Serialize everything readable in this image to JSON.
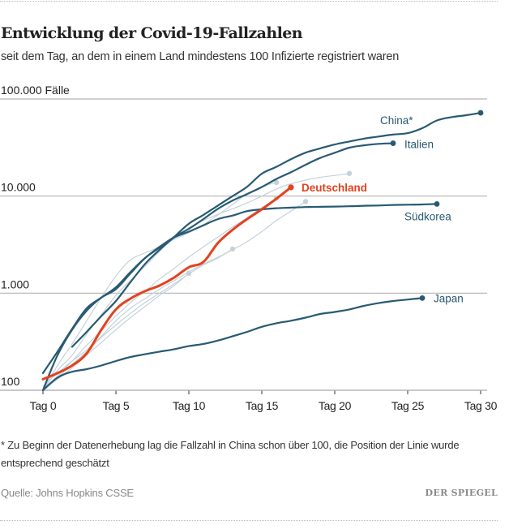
{
  "header": {
    "title": "Entwicklung der Covid-19-Fallzahlen",
    "subtitle": "seit dem Tag, an dem in einem Land mindestens 100 Infizierte registriert waren"
  },
  "footer": {
    "footnote": "* Zu Beginn der Datenerhebung lag die Fallzahl in China schon über 100, die Position der Linie wurde entsprechend geschätzt",
    "source": "Quelle: Johns Hopkins CSSE",
    "logo": "DER SPIEGEL"
  },
  "colors": {
    "highlight": "#e4421d",
    "labeled": "#285a73",
    "background_series": "#c5d2da",
    "grid": "#b3b3b3"
  },
  "chart_data": {
    "type": "line",
    "title": "Entwicklung der Covid-19-Fallzahlen",
    "subtitle": "seit dem Tag, an dem in einem Land mindestens 100 Infizierte registriert waren",
    "xlabel": "",
    "ylabel": "Fälle",
    "yscale": "log",
    "xlim": [
      0,
      30
    ],
    "ylim": [
      100,
      100000
    ],
    "grid": true,
    "x_ticks": [
      {
        "value": 0,
        "label": "Tag 0"
      },
      {
        "value": 5,
        "label": "Tag 5"
      },
      {
        "value": 10,
        "label": "Tag 10"
      },
      {
        "value": 15,
        "label": "Tag 15"
      },
      {
        "value": 20,
        "label": "Tag 20"
      },
      {
        "value": 25,
        "label": "Tag 25"
      },
      {
        "value": 30,
        "label": "Tag 30"
      }
    ],
    "y_ticks": [
      {
        "value": 100,
        "label": "100"
      },
      {
        "value": 1000,
        "label": "1.000"
      },
      {
        "value": 10000,
        "label": "10.000"
      },
      {
        "value": 100000,
        "label": "100.000 Fälle"
      }
    ],
    "series": [
      {
        "name": "",
        "role": "background",
        "start_day": 0,
        "values": [
          100,
          160,
          230,
          380,
          600,
          950,
          1350,
          1900,
          2700,
          3700,
          4700,
          5600,
          6500,
          7400,
          8500,
          10000,
          11800,
          13400,
          14600,
          15600,
          16300,
          17100
        ]
      },
      {
        "name": "",
        "role": "background",
        "start_day": 0,
        "values": [
          100,
          180,
          300,
          520,
          900,
          1500,
          2200,
          2600,
          3000,
          3600,
          4200,
          5100,
          6400,
          8200,
          10500,
          12500,
          13800
        ]
      },
      {
        "name": "",
        "role": "background",
        "start_day": 0,
        "values": [
          110,
          150,
          200,
          260,
          360,
          520,
          700,
          880,
          1100,
          1350,
          1650,
          2000,
          2350,
          2800,
          3400,
          4300,
          5600,
          7000,
          8800
        ]
      },
      {
        "name": "",
        "role": "background",
        "start_day": 0,
        "values": [
          100,
          135,
          185,
          250,
          350,
          470,
          620,
          800,
          1000,
          1250,
          1580,
          1950,
          2300,
          2850
        ]
      },
      {
        "name": "",
        "role": "background",
        "start_day": 0,
        "values": [
          100,
          130,
          170,
          230,
          310,
          420,
          560,
          730,
          950,
          1200,
          1600
        ]
      },
      {
        "name": "",
        "role": "background",
        "start_day": 0,
        "values": [
          100,
          140,
          200,
          290,
          410,
          580,
          800,
          1050,
          1400,
          1800,
          2350,
          3000,
          3800,
          4800,
          6000,
          7600,
          9500
        ]
      },
      {
        "name": "China*",
        "role": "labeled",
        "start_day": 2,
        "values": [
          280,
          400,
          580,
          830,
          1300,
          2000,
          2800,
          3800,
          5200,
          6400,
          8000,
          10000,
          12500,
          17000,
          20000,
          24000,
          28000,
          31000,
          34000,
          36500,
          39000,
          41000,
          43000,
          44500,
          50000,
          60000,
          65000,
          68000,
          72000
        ]
      },
      {
        "name": "Italien",
        "role": "labeled",
        "start_day": 0,
        "values": [
          100,
          230,
          420,
          660,
          900,
          1100,
          1600,
          2300,
          3000,
          3800,
          4600,
          5800,
          7400,
          9000,
          10500,
          12400,
          15000,
          17600,
          21000,
          24700,
          27900,
          31500,
          33300,
          34500,
          35000
        ]
      },
      {
        "name": "Südkorea",
        "role": "labeled",
        "start_day": 0,
        "values": [
          150,
          250,
          430,
          700,
          900,
          1150,
          1650,
          2300,
          2950,
          3750,
          4300,
          5000,
          5800,
          6300,
          7000,
          7300,
          7500,
          7600,
          7700,
          7750,
          7800,
          7850,
          7950,
          8000,
          8100,
          8150,
          8200,
          8300
        ]
      },
      {
        "name": "Japan",
        "role": "labeled",
        "start_day": 0,
        "values": [
          100,
          135,
          155,
          165,
          180,
          200,
          220,
          235,
          250,
          265,
          285,
          300,
          325,
          360,
          400,
          450,
          490,
          520,
          560,
          610,
          640,
          680,
          740,
          790,
          830,
          860,
          890
        ]
      },
      {
        "name": "Deutschland",
        "role": "highlight",
        "start_day": 0,
        "values": [
          130,
          150,
          180,
          240,
          420,
          680,
          880,
          1050,
          1200,
          1450,
          1850,
          2100,
          3300,
          4500,
          5800,
          7300,
          9400,
          12300
        ]
      }
    ]
  }
}
